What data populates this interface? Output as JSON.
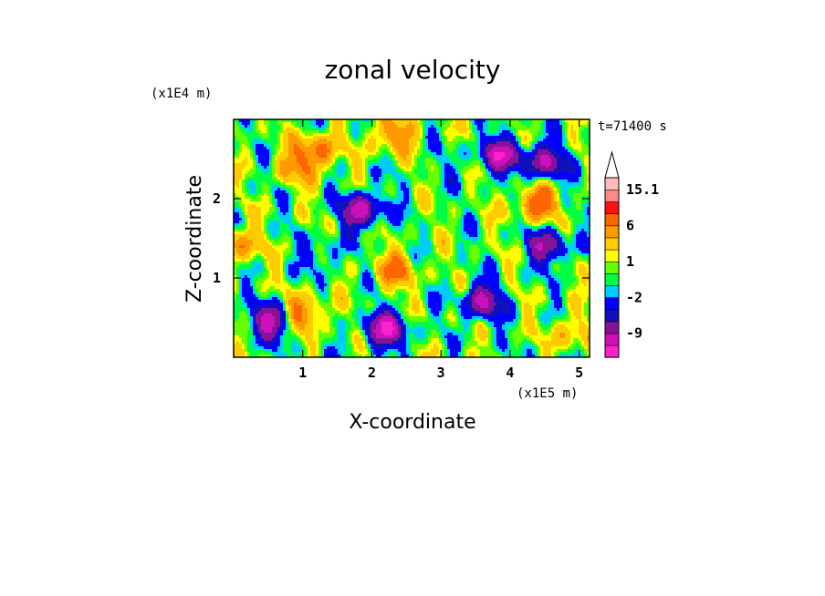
{
  "chart_data": {
    "type": "heatmap",
    "title": "zonal velocity",
    "xlabel": "X-coordinate",
    "ylabel": "Z-coordinate",
    "x_unit": "(x1E5 m)",
    "y_unit": "(x1E4 m)",
    "time_label": "t=71400 s",
    "xlim": [
      0,
      5.15
    ],
    "ylim": [
      0,
      3.0
    ],
    "x_ticks": [
      1,
      2,
      3,
      4,
      5
    ],
    "x_tick_labels": [
      "1",
      "2",
      "3",
      "4",
      "5"
    ],
    "y_ticks": [
      1,
      2
    ],
    "y_tick_labels": [
      "1",
      "2"
    ],
    "colorbar": {
      "levels": [
        -15,
        -12,
        -9,
        -6,
        -4,
        -2,
        -1,
        0,
        1,
        2,
        4,
        6,
        9,
        12,
        15.1
      ],
      "colors": [
        "#ff22cc",
        "#cc11bb",
        "#881199",
        "#1111bb",
        "#0000ff",
        "#00ccff",
        "#00ff44",
        "#66ff00",
        "#ffff00",
        "#ffcc00",
        "#ff9900",
        "#ff6600",
        "#ff1111",
        "#ff8888",
        "#ffbbbb"
      ],
      "tick_labels": [
        {
          "level": 15.1,
          "label": "15.1"
        },
        {
          "level": 6,
          "label": "6"
        },
        {
          "level": 1,
          "label": "1"
        },
        {
          "level": -2,
          "label": "-2"
        },
        {
          "level": -9,
          "label": "-9"
        }
      ]
    },
    "field_features": [
      {
        "x": 1.2,
        "z": 2.6,
        "u": 7
      },
      {
        "x": 0.9,
        "z": 2.4,
        "u": 4
      },
      {
        "x": 2.3,
        "z": 2.8,
        "u": 6
      },
      {
        "x": 1.85,
        "z": 1.85,
        "u": -10
      },
      {
        "x": 3.85,
        "z": 2.55,
        "u": -10
      },
      {
        "x": 4.5,
        "z": 2.45,
        "u": -9
      },
      {
        "x": 4.4,
        "z": 1.95,
        "u": 8
      },
      {
        "x": 4.55,
        "z": 1.4,
        "u": -8
      },
      {
        "x": 2.35,
        "z": 1.1,
        "u": 6
      },
      {
        "x": 1.3,
        "z": 1.3,
        "u": -3
      },
      {
        "x": 0.55,
        "z": 0.45,
        "u": -10
      },
      {
        "x": 1.0,
        "z": 0.55,
        "u": 7
      },
      {
        "x": 2.2,
        "z": 0.35,
        "u": -11
      },
      {
        "x": 3.6,
        "z": 0.7,
        "u": -9
      },
      {
        "x": 3.0,
        "z": 2.4,
        "u": -1
      },
      {
        "x": 0.1,
        "z": 1.4,
        "u": 5
      },
      {
        "x": 4.9,
        "z": 0.3,
        "u": 4
      }
    ]
  }
}
